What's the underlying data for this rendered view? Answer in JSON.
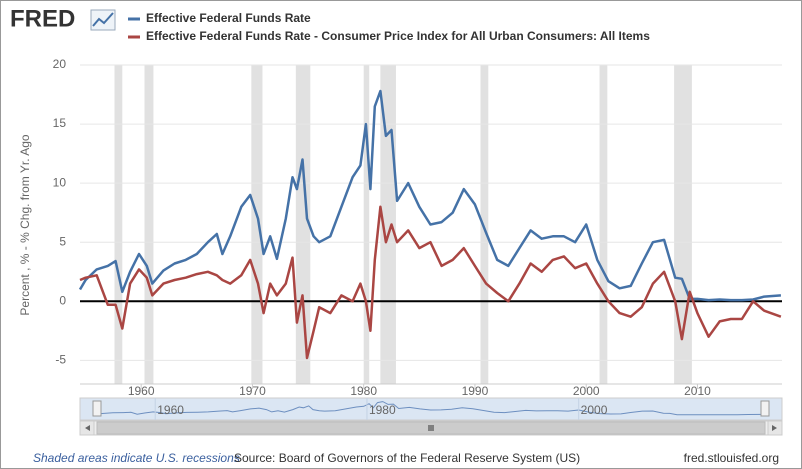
{
  "chart_data": {
    "type": "line",
    "logo": "FRED",
    "ylabel": "Percent , % - % Chg. from Yr. Ago",
    "x": [
      1954.5,
      1955,
      1956,
      1957,
      1957.7,
      1958.3,
      1959,
      1959.8,
      1960.5,
      1961,
      1962,
      1963,
      1964,
      1965,
      1966,
      1966.8,
      1967.3,
      1968,
      1969,
      1969.8,
      1970.5,
      1971,
      1971.6,
      1972.2,
      1973,
      1973.6,
      1974,
      1974.5,
      1974.9,
      1975.5,
      1976,
      1977,
      1978,
      1979,
      1979.7,
      1980.2,
      1980.6,
      1981,
      1981.5,
      1982,
      1982.5,
      1983,
      1984,
      1985,
      1986,
      1987,
      1988,
      1989,
      1990,
      1991,
      1992,
      1993,
      1994,
      1995,
      1996,
      1997,
      1998,
      1999,
      2000,
      2001,
      2002,
      2003,
      2004,
      2005,
      2006,
      2007,
      2008,
      2008.6,
      2009.3,
      2010,
      2011,
      2012,
      2013,
      2014,
      2015,
      2016,
      2017.5
    ],
    "series": [
      {
        "name": "Effective Federal Funds Rate",
        "color": "#4572a7",
        "values": [
          1.0,
          1.8,
          2.7,
          3.0,
          3.4,
          0.8,
          2.5,
          4.0,
          3.0,
          1.5,
          2.6,
          3.2,
          3.5,
          4.0,
          5.0,
          5.7,
          4.0,
          5.5,
          8.0,
          9.0,
          7.0,
          4.0,
          5.5,
          3.6,
          7.0,
          10.5,
          9.5,
          12.0,
          7.0,
          5.5,
          5.0,
          5.5,
          8.0,
          10.5,
          11.5,
          15.0,
          9.5,
          16.5,
          17.8,
          14.0,
          14.5,
          8.5,
          10.0,
          8.0,
          6.5,
          6.7,
          7.5,
          9.5,
          8.2,
          5.8,
          3.5,
          3.0,
          4.5,
          6.0,
          5.3,
          5.5,
          5.5,
          5.0,
          6.5,
          3.5,
          1.7,
          1.1,
          1.3,
          3.2,
          5.0,
          5.2,
          2.0,
          1.9,
          0.2,
          0.2,
          0.1,
          0.15,
          0.1,
          0.1,
          0.15,
          0.4,
          0.5
        ]
      },
      {
        "name": "Effective Federal Funds Rate - Consumer Price Index for All Urban Consumers: All Items",
        "color": "#aa4643",
        "values": [
          1.8,
          2.0,
          2.2,
          -0.3,
          -0.3,
          -2.3,
          1.5,
          2.7,
          2.0,
          0.5,
          1.5,
          1.8,
          2.0,
          2.3,
          2.5,
          2.2,
          1.8,
          1.5,
          2.2,
          3.5,
          1.5,
          -1.0,
          1.5,
          0.5,
          1.5,
          3.7,
          -1.8,
          0.5,
          -4.8,
          -2.5,
          -0.5,
          -1.0,
          0.5,
          0.0,
          1.5,
          0.0,
          -2.5,
          3.5,
          8.0,
          5.0,
          6.5,
          5.0,
          6.0,
          4.5,
          5.0,
          3.0,
          3.5,
          4.5,
          3.0,
          1.5,
          0.7,
          0.0,
          1.5,
          3.2,
          2.5,
          3.5,
          3.8,
          2.8,
          3.2,
          1.5,
          0.0,
          -1.0,
          -1.3,
          -0.5,
          1.5,
          2.5,
          0.0,
          -3.2,
          0.8,
          -1.0,
          -3.0,
          -1.7,
          -1.5,
          -1.5,
          0.0,
          -0.8,
          -1.3
        ]
      }
    ],
    "recessions": [
      [
        1957.6,
        1958.3
      ],
      [
        1960.3,
        1961.1
      ],
      [
        1969.9,
        1970.9
      ],
      [
        1973.9,
        1975.2
      ],
      [
        1980.0,
        1980.5
      ],
      [
        1981.5,
        1982.9
      ],
      [
        1990.5,
        1991.2
      ],
      [
        2001.2,
        2001.9
      ],
      [
        2007.9,
        2009.5
      ]
    ],
    "xlim": [
      1954.5,
      2017.6
    ],
    "xticks": [
      1960,
      1970,
      1980,
      1990,
      2000,
      2010
    ],
    "ylim": [
      -7,
      20
    ],
    "yticks": [
      -5,
      0,
      5,
      10,
      15,
      20
    ],
    "grid": true,
    "navigator": {
      "xticks": [
        1960,
        1980,
        2000
      ]
    },
    "footnote": "Shaded areas indicate U.S. recessions",
    "source": "Source: Board of Governors of the Federal Reserve System (US)",
    "url": "fred.stlouisfed.org"
  }
}
